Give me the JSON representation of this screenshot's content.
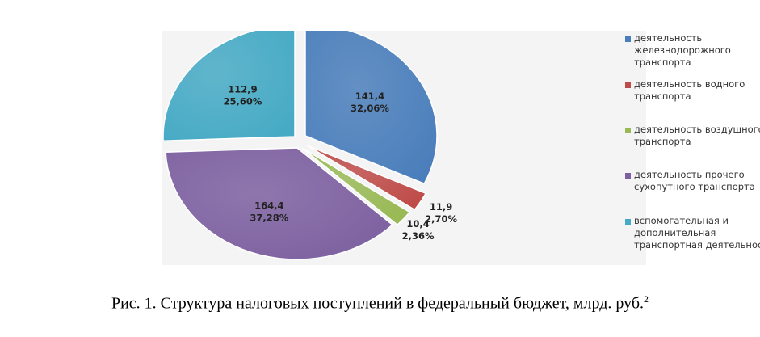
{
  "chart_data": {
    "type": "pie",
    "slices": [
      {
        "name": "деятельность железнодорожного транспорта",
        "value": 141.4,
        "value_label": "141,4",
        "percent_label": "32,06%",
        "color": "#4a7ebb"
      },
      {
        "name": "деятельность водного транспорта",
        "value": 11.9,
        "value_label": "11,9",
        "percent_label": "2,70%",
        "color": "#be4b48"
      },
      {
        "name": "деятельность воздушного транспорта",
        "value": 10.4,
        "value_label": "10,4",
        "percent_label": "2,36%",
        "color": "#98b954"
      },
      {
        "name": "деятельность прочего сухопутного транспорта",
        "value": 164.4,
        "value_label": "164,4",
        "percent_label": "37,28%",
        "color": "#7d60a0"
      },
      {
        "name": "вспомогательная и дополнительная транспортная деятельность",
        "value": 112.9,
        "value_label": "112,9",
        "percent_label": "25,60%",
        "color": "#46aac5"
      }
    ],
    "legend": [
      "деятельность\nжелезнодорожного\nтранспорта",
      "деятельность водного\nтранспорта",
      "деятельность воздушного\nтранспорта",
      "деятельность прочего\nсухопутного транспорта",
      "вспомогательная и\nдополнительная\nтранспортная деятельность"
    ],
    "legend_position": "right"
  },
  "caption": {
    "text": "Рис. 1. Структура налоговых поступлений в федеральный бюджет, млрд. руб.",
    "footnote": "2"
  }
}
